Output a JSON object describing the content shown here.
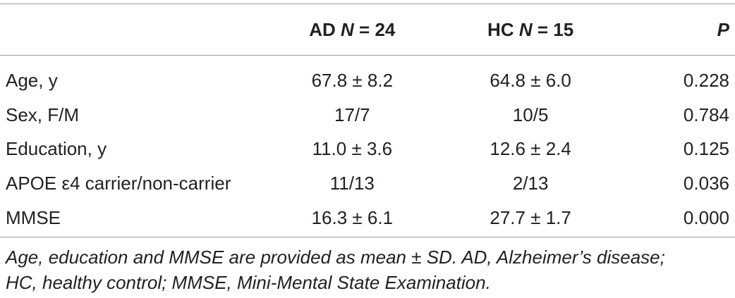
{
  "table": {
    "headers": {
      "variable": "",
      "ad_prefix": "AD",
      "ad_n": "N",
      "ad_suffix": " = 24",
      "hc_prefix": "HC",
      "hc_n": "N",
      "hc_suffix": " = 15",
      "p": "P"
    },
    "rows": [
      {
        "label": "Age, y",
        "ad": "67.8 ± 8.2",
        "hc": "64.8 ± 6.0",
        "p": "0.228"
      },
      {
        "label": "Sex, F/M",
        "ad": "17/7",
        "hc": "10/5",
        "p": "0.784"
      },
      {
        "label": "Education, y",
        "ad": "11.0 ± 3.6",
        "hc": "12.6 ± 2.4",
        "p": "0.125"
      },
      {
        "label": "APOE ε4 carrier/non-carrier",
        "ad": "11/13",
        "hc": "2/13",
        "p": "0.036"
      },
      {
        "label": "MMSE",
        "ad": "16.3 ± 6.1",
        "hc": "27.7 ± 1.7",
        "p": "0.000"
      }
    ]
  },
  "footnote": {
    "line1": "Age, education and MMSE are provided as mean ± SD. AD, Alzheimer’s disease;",
    "line2": "HC, healthy control; MMSE, Mini-Mental State Examination."
  }
}
